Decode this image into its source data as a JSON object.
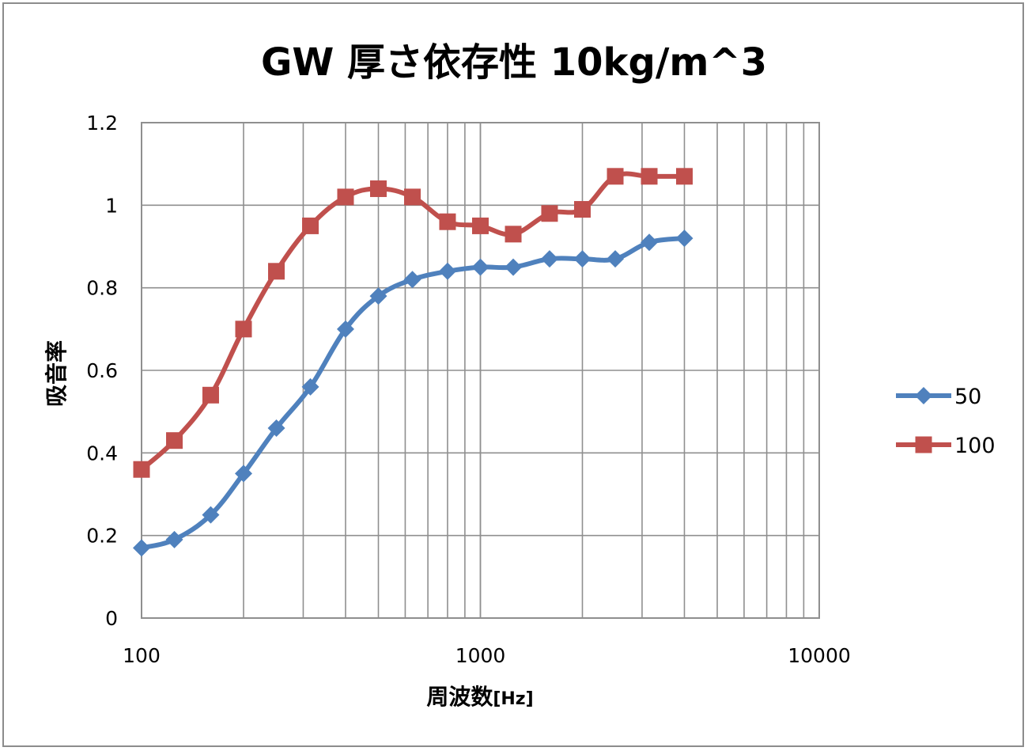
{
  "chart_data": {
    "type": "line",
    "title": "GW 厚さ依存性 10kg/m^3",
    "xlabel": "周波数",
    "xlabel_unit": "[Hz]",
    "ylabel": "吸音率",
    "x_scale": "log",
    "xlim": [
      100,
      10000
    ],
    "ylim": [
      0,
      1.2
    ],
    "x_ticks": [
      "100",
      "1000",
      "10000"
    ],
    "y_ticks": [
      "0",
      "0.2",
      "0.4",
      "0.6",
      "0.8",
      "1",
      "1.2"
    ],
    "grid": true,
    "legend_position": "right",
    "x": [
      100,
      125,
      160,
      200,
      250,
      315,
      400,
      500,
      630,
      800,
      1000,
      1250,
      1600,
      2000,
      2500,
      3150,
      4000
    ],
    "series": [
      {
        "name": "50",
        "color": "#4f81bd",
        "marker": "diamond",
        "values": [
          0.17,
          0.19,
          0.25,
          0.35,
          0.46,
          0.56,
          0.7,
          0.78,
          0.82,
          0.84,
          0.85,
          0.85,
          0.87,
          0.87,
          0.87,
          0.91,
          0.92
        ]
      },
      {
        "name": "100",
        "color": "#c0504d",
        "marker": "square",
        "values": [
          0.36,
          0.43,
          0.54,
          0.7,
          0.84,
          0.95,
          1.02,
          1.04,
          1.02,
          0.96,
          0.95,
          0.93,
          0.98,
          0.99,
          1.07,
          1.07,
          1.07
        ]
      }
    ]
  }
}
